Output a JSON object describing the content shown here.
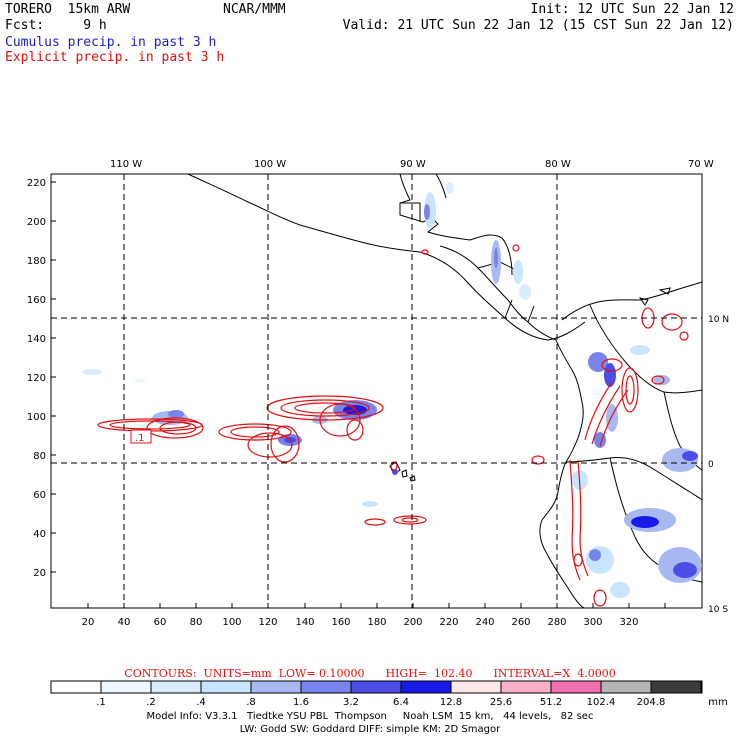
{
  "header": {
    "line1_left": "TORERO  15km ARW",
    "model_name": "NCAR/MMM",
    "init": "Init: 12 UTC Sun 22 Jan 12",
    "line2_left": "Fcst:     9 h",
    "valid": "Valid: 21 UTC Sun 22 Jan 12 (15 CST Sun 22 Jan 12)",
    "legend_cumulus": "Cumulus precip. in past 3 h",
    "legend_explicit": "Explicit precip. in past 3 h"
  },
  "map": {
    "lon_labels": [
      "110 W",
      "100 W",
      "90 W",
      "80 W",
      "70 W"
    ],
    "lat_labels": [
      "10 N",
      "0",
      "10 S"
    ],
    "x_ticks": [
      "20",
      "40",
      "60",
      "80",
      "100",
      "120",
      "140",
      "160",
      "180",
      "200",
      "220",
      "240",
      "260",
      "280",
      "300",
      "320"
    ],
    "y_ticks": [
      "20",
      "40",
      "60",
      "80",
      "100",
      "120",
      "140",
      "160",
      "180",
      "200",
      "220"
    ],
    "contour_label": ".1"
  },
  "contours": {
    "info": "CONTOURS:  UNITS=mm  LOW= 0.10000      HIGH=  102.40      INTERVAL=X  4.0000"
  },
  "colorbar": {
    "labels": [
      ".1",
      ".2",
      ".4",
      ".8",
      "1.6",
      "3.2",
      "6.4",
      "12.8",
      "25.6",
      "51.2",
      "102.4",
      "204.8"
    ],
    "unit": "mm",
    "colors": [
      "#ffffff",
      "#eef7ff",
      "#dcecff",
      "#c8e4ff",
      "#a8b8f0",
      "#7884ec",
      "#4c4ce6",
      "#1a1ae6",
      "#fde8e8",
      "#f8b0c8",
      "#f070b0",
      "#b4b4b4",
      "#3c3c3c",
      "#d8a8f8"
    ]
  },
  "footer": {
    "line1": "Model Info: V3.3.1   Tiedtke YSU PBL  Thompson     Noah LSM  15 km,   44 levels,   82 sec",
    "line2": "LW: Godd SW: Goddard DIFF: simple KM: 2D Smagor"
  }
}
